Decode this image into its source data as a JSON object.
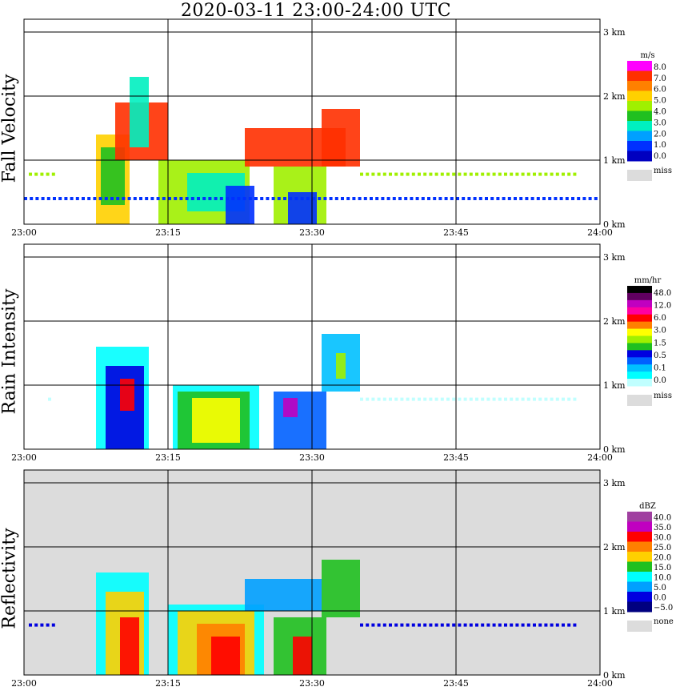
{
  "title": "2020-03-11   23:00-24:00 UTC",
  "chart_data": [
    {
      "type": "heatmap",
      "panel_label": "Fall Velocity",
      "legend_unit": "m/s",
      "legend_ticks": [
        "8.0",
        "7.0",
        "6.0",
        "5.0",
        "4.0",
        "3.0",
        "2.0",
        "1.0",
        "0.0"
      ],
      "legend_colors": [
        "#ff00ff",
        "#ff3000",
        "#ff8000",
        "#ffd000",
        "#a0f000",
        "#20c020",
        "#00f0c0",
        "#00a0ff",
        "#0030ff",
        "#0000c0"
      ],
      "missing_label": "miss",
      "x_ticks": [
        "23:00",
        "23:15",
        "23:30",
        "23:45",
        "24:00"
      ],
      "y_ticks": [
        "0 km",
        "1 km",
        "2 km",
        "3 km"
      ],
      "xlim": [
        0,
        60
      ],
      "ylim": [
        0,
        3.2
      ],
      "background": "white",
      "cells": [
        {
          "t0": 7.5,
          "t1": 11.0,
          "z0": 0.0,
          "z1": 1.4,
          "level": 3
        },
        {
          "t0": 8.0,
          "t1": 10.5,
          "z0": 0.3,
          "z1": 1.2,
          "level": 5
        },
        {
          "t0": 9.5,
          "t1": 15.0,
          "z0": 1.0,
          "z1": 1.9,
          "level": 1
        },
        {
          "t0": 14.0,
          "t1": 23.5,
          "z0": 0.0,
          "z1": 1.0,
          "level": 4
        },
        {
          "t0": 17.0,
          "t1": 23.0,
          "z0": 0.2,
          "z1": 0.8,
          "level": 6
        },
        {
          "t0": 21.0,
          "t1": 24.0,
          "z0": 0.0,
          "z1": 0.6,
          "level": 8
        },
        {
          "t0": 23.0,
          "t1": 33.5,
          "z0": 0.9,
          "z1": 1.5,
          "level": 1
        },
        {
          "t0": 26.0,
          "t1": 31.5,
          "z0": 0.0,
          "z1": 0.9,
          "level": 4
        },
        {
          "t0": 27.5,
          "t1": 30.5,
          "z0": 0.0,
          "z1": 0.5,
          "level": 8
        },
        {
          "t0": 31.0,
          "t1": 35.0,
          "z0": 0.9,
          "z1": 1.8,
          "level": 1
        },
        {
          "t0": 11.0,
          "t1": 13.0,
          "z0": 1.2,
          "z1": 2.3,
          "level": 6
        }
      ],
      "dots": [
        {
          "t0": 0.5,
          "t1": 3.5,
          "z": 0.78,
          "level": 4
        },
        {
          "t0": 35.0,
          "t1": 57.5,
          "z": 0.78,
          "level": 4
        },
        {
          "t0": 0.0,
          "t1": 60.0,
          "z": 0.4,
          "level": 8
        }
      ]
    },
    {
      "type": "heatmap",
      "panel_label": "Rain Intensity",
      "legend_unit": "mm/hr",
      "legend_ticks": [
        "48.0",
        "12.0",
        "6.0",
        "3.0",
        "1.5",
        "0.5",
        "0.1",
        "0.0"
      ],
      "legend_colors": [
        "#000000",
        "#600060",
        "#c000c0",
        "#ff00a0",
        "#ff0000",
        "#ff8000",
        "#ffff00",
        "#a0f000",
        "#20c020",
        "#0000e0",
        "#0060ff",
        "#00c0ff",
        "#00ffff",
        "#c0ffff"
      ],
      "missing_label": "miss",
      "x_ticks": [
        "23:00",
        "23:15",
        "23:30",
        "23:45",
        "24:00"
      ],
      "y_ticks": [
        "0 km",
        "1 km",
        "2 km",
        "3 km"
      ],
      "xlim": [
        0,
        60
      ],
      "ylim": [
        0,
        3.2
      ],
      "background": "white",
      "cells": [
        {
          "t0": 7.5,
          "t1": 13.0,
          "z0": 0.0,
          "z1": 1.6,
          "level": 12
        },
        {
          "t0": 8.5,
          "t1": 12.5,
          "z0": 0.0,
          "z1": 1.3,
          "level": 9
        },
        {
          "t0": 10.0,
          "t1": 11.5,
          "z0": 0.6,
          "z1": 1.1,
          "level": 4
        },
        {
          "t0": 15.5,
          "t1": 24.5,
          "z0": 0.0,
          "z1": 1.0,
          "level": 12
        },
        {
          "t0": 16.0,
          "t1": 23.5,
          "z0": 0.0,
          "z1": 0.9,
          "level": 8
        },
        {
          "t0": 17.5,
          "t1": 22.5,
          "z0": 0.1,
          "z1": 0.8,
          "level": 6
        },
        {
          "t0": 26.0,
          "t1": 31.5,
          "z0": 0.0,
          "z1": 0.9,
          "level": 10
        },
        {
          "t0": 27.0,
          "t1": 28.5,
          "z0": 0.5,
          "z1": 0.8,
          "level": 2
        },
        {
          "t0": 31.0,
          "t1": 35.0,
          "z0": 0.9,
          "z1": 1.8,
          "level": 11
        },
        {
          "t0": 32.5,
          "t1": 33.5,
          "z0": 1.1,
          "z1": 1.5,
          "level": 7
        }
      ],
      "dots": [
        {
          "t0": 2.5,
          "t1": 3.0,
          "z": 0.78,
          "level": 13
        },
        {
          "t0": 35.0,
          "t1": 57.5,
          "z": 0.78,
          "level": 13
        }
      ]
    },
    {
      "type": "heatmap",
      "panel_label": "Reflectivity",
      "legend_unit": "dBZ",
      "legend_ticks": [
        "40.0",
        "35.0",
        "30.0",
        "25.0",
        "20.0",
        "15.0",
        "10.0",
        "5.0",
        "0.0",
        "−5.0"
      ],
      "legend_colors": [
        "#a040a0",
        "#c000c0",
        "#ff0000",
        "#ff8000",
        "#ffd000",
        "#20c020",
        "#00ffff",
        "#00a0ff",
        "#0000e0",
        "#000080"
      ],
      "missing_label": "none",
      "x_ticks": [
        "23:00",
        "23:15",
        "23:30",
        "23:45",
        "24:00"
      ],
      "y_ticks": [
        "0 km",
        "1 km",
        "2 km",
        "3 km"
      ],
      "xlim": [
        0,
        60
      ],
      "ylim": [
        0,
        3.2
      ],
      "background": "#dcdcdc",
      "cells": [
        {
          "t0": 7.5,
          "t1": 13.0,
          "z0": 0.0,
          "z1": 1.6,
          "level": 6
        },
        {
          "t0": 8.5,
          "t1": 12.5,
          "z0": 0.0,
          "z1": 1.3,
          "level": 4
        },
        {
          "t0": 10.0,
          "t1": 12.0,
          "z0": 0.0,
          "z1": 0.9,
          "level": 2
        },
        {
          "t0": 15.0,
          "t1": 25.0,
          "z0": 0.0,
          "z1": 1.1,
          "level": 6
        },
        {
          "t0": 16.0,
          "t1": 24.0,
          "z0": 0.0,
          "z1": 1.0,
          "level": 4
        },
        {
          "t0": 18.0,
          "t1": 23.0,
          "z0": 0.0,
          "z1": 0.8,
          "level": 3
        },
        {
          "t0": 19.5,
          "t1": 22.5,
          "z0": 0.0,
          "z1": 0.6,
          "level": 2
        },
        {
          "t0": 26.0,
          "t1": 31.5,
          "z0": 0.0,
          "z1": 0.9,
          "level": 5
        },
        {
          "t0": 28.0,
          "t1": 30.0,
          "z0": 0.0,
          "z1": 0.6,
          "level": 2
        },
        {
          "t0": 31.0,
          "t1": 35.0,
          "z0": 0.9,
          "z1": 1.8,
          "level": 5
        },
        {
          "t0": 23.0,
          "t1": 31.0,
          "z0": 1.0,
          "z1": 1.5,
          "level": 7
        }
      ],
      "dots": [
        {
          "t0": 0.5,
          "t1": 3.5,
          "z": 0.78,
          "level": 8
        },
        {
          "t0": 35.0,
          "t1": 57.5,
          "z": 0.78,
          "level": 8
        }
      ]
    }
  ]
}
